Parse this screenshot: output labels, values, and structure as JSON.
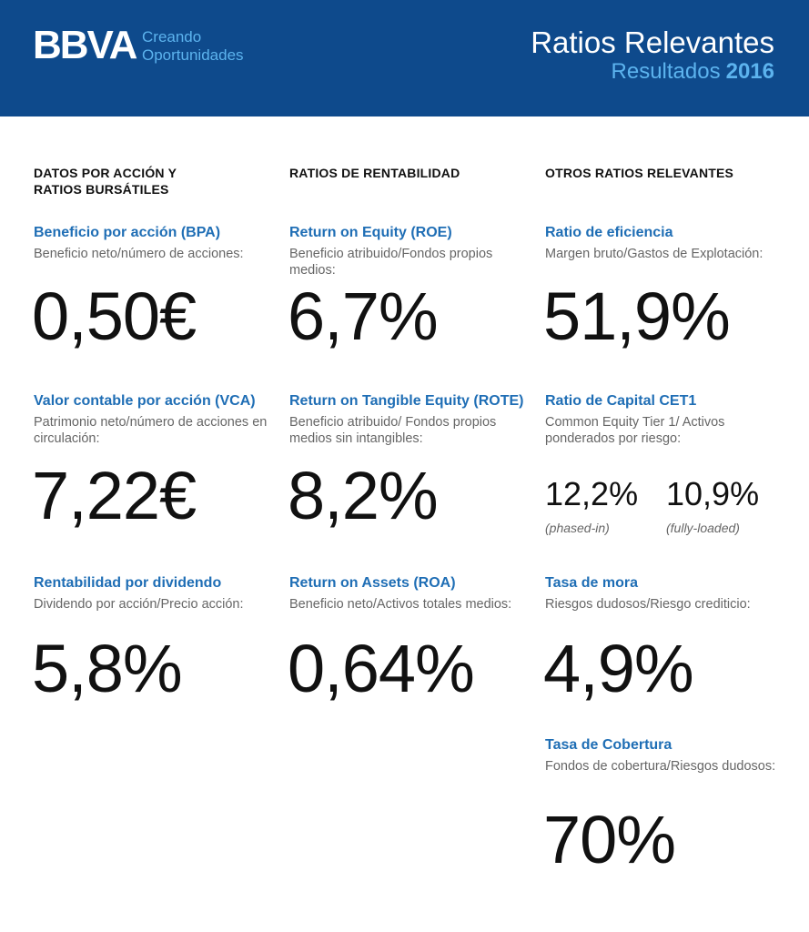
{
  "header": {
    "logo": "BBVA",
    "tagline_1": "Creando",
    "tagline_2": "Oportunidades",
    "title": "Ratios Relevantes",
    "subtitle": "Resultados",
    "year": "2016"
  },
  "columns": [
    {
      "heading_1": "DATOS POR ACCIÓN Y",
      "heading_2": "RATIOS BURSÁTILES",
      "metrics": [
        {
          "title": "Beneficio por acción (BPA)",
          "desc": "Beneficio neto/número de acciones:",
          "value": "0,50€"
        },
        {
          "title": "Valor contable por acción (VCA)",
          "desc": "Patrimonio neto/número de acciones en circulación:",
          "value": "7,22€"
        },
        {
          "title": "Rentabilidad por dividendo",
          "desc": "Dividendo por acción/Precio acción:",
          "value": "5,8%"
        }
      ]
    },
    {
      "heading_1": "RATIOS  DE RENTABILIDAD",
      "metrics": [
        {
          "title": "Return on Equity (ROE)",
          "desc": "Beneficio atribuido/Fondos propios medios:",
          "value": "6,7%"
        },
        {
          "title": "Return on Tangible Equity (ROTE)",
          "desc": "Beneficio atribuido/ Fondos propios medios sin intangibles:",
          "value": "8,2%"
        },
        {
          "title": "Return on Assets (ROA)",
          "desc": "Beneficio neto/Activos totales medios:",
          "value": "0,64%"
        }
      ]
    },
    {
      "heading_1": "OTROS RATIOS  RELEVANTES",
      "metrics": [
        {
          "title": "Ratio de eficiencia",
          "desc": "Margen bruto/Gastos de Explotación:",
          "value": "51,9%"
        },
        {
          "title": "Ratio de Capital CET1",
          "desc": "Common Equity Tier 1/ Activos ponderados por riesgo:",
          "value_a": "12,2%",
          "note_a": "(phased-in)",
          "value_b": "10,9%",
          "note_b": "(fully-loaded)"
        },
        {
          "title": "Tasa de mora",
          "desc": "Riesgos dudosos/Riesgo crediticio:",
          "value": "4,9%"
        },
        {
          "title": "Tasa de  Cobertura",
          "desc": "Fondos de cobertura/Riesgos dudosos:",
          "value": "70%"
        }
      ]
    }
  ]
}
